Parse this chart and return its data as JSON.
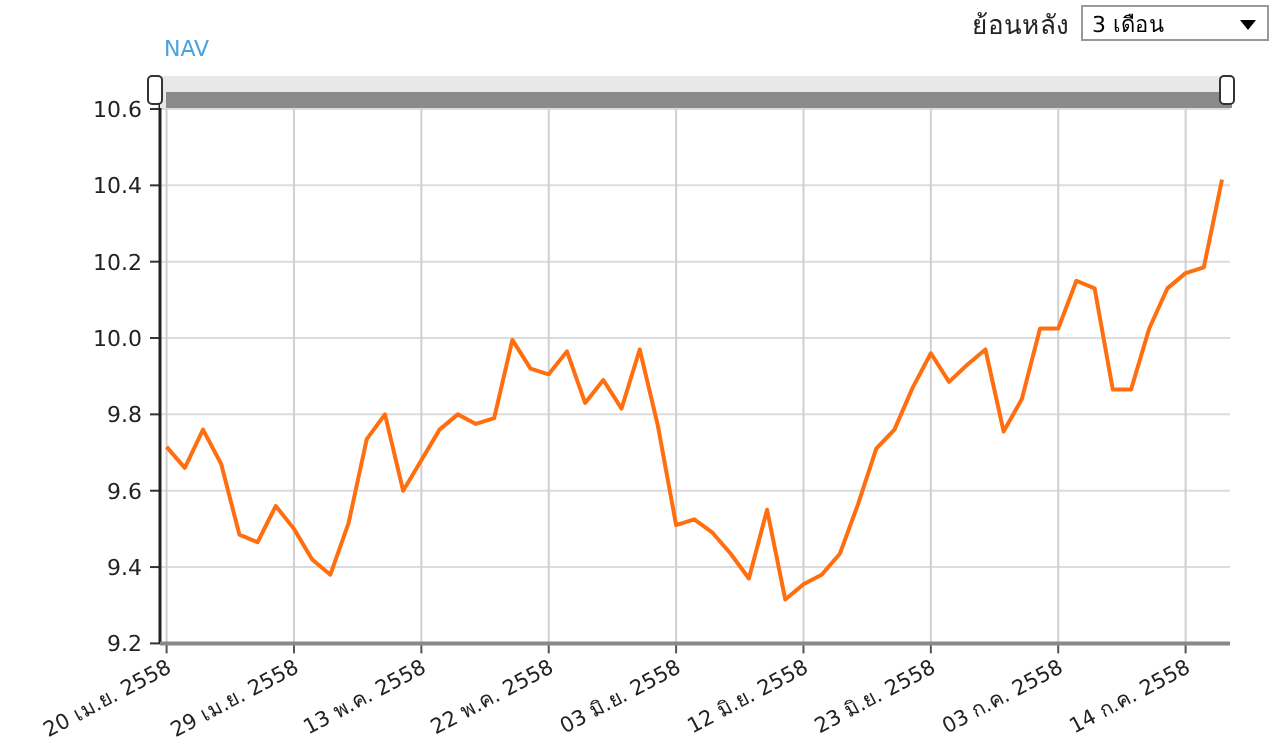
{
  "chart_data": {
    "type": "line",
    "ylabel": "NAV",
    "annotations": [
      "ย้อนหลัง",
      "3 เดือน"
    ],
    "categories": [
      "20 เม.ย. 2558",
      null,
      null,
      null,
      null,
      null,
      null,
      "29 เม.ย. 2558",
      null,
      null,
      null,
      null,
      null,
      null,
      "13 พ.ค. 2558",
      null,
      null,
      null,
      null,
      null,
      null,
      "22 พ.ค. 2558",
      null,
      null,
      null,
      null,
      null,
      null,
      "03 มิ.ย. 2558",
      null,
      null,
      null,
      null,
      null,
      null,
      "12 มิ.ย. 2558",
      null,
      null,
      null,
      null,
      null,
      null,
      "23 มิ.ย. 2558",
      null,
      null,
      null,
      null,
      null,
      null,
      "03 ก.ค. 2558",
      null,
      null,
      null,
      null,
      null,
      null,
      "14 ก.ค. 2558",
      null,
      null
    ],
    "series": [
      {
        "color": "#ff6f0f",
        "values": [
          9.715,
          9.66,
          9.76,
          9.67,
          9.485,
          9.465,
          9.56,
          9.5,
          9.42,
          9.38,
          9.515,
          9.735,
          9.8,
          9.6,
          9.68,
          9.76,
          9.8,
          9.775,
          9.79,
          9.995,
          9.92,
          9.905,
          9.965,
          9.83,
          9.89,
          9.815,
          9.97,
          9.77,
          9.51,
          9.525,
          9.49,
          9.435,
          9.37,
          9.55,
          9.315,
          9.355,
          9.38,
          9.435,
          9.565,
          9.71,
          9.76,
          9.87,
          9.96,
          9.885,
          9.93,
          9.97,
          9.755,
          9.84,
          10.025,
          10.025,
          10.15,
          10.13,
          9.865,
          9.865,
          10.025,
          10.13,
          10.17,
          10.185,
          10.415
        ]
      }
    ],
    "ylim": [
      9.2,
      10.6
    ],
    "yticks": [
      9.2,
      9.4,
      9.6,
      9.8,
      {
        "value": 10,
        "label": "10.0"
      },
      10.2,
      10.4,
      10.6
    ],
    "grid": true,
    "marker": "none",
    "line_style": "solid"
  }
}
